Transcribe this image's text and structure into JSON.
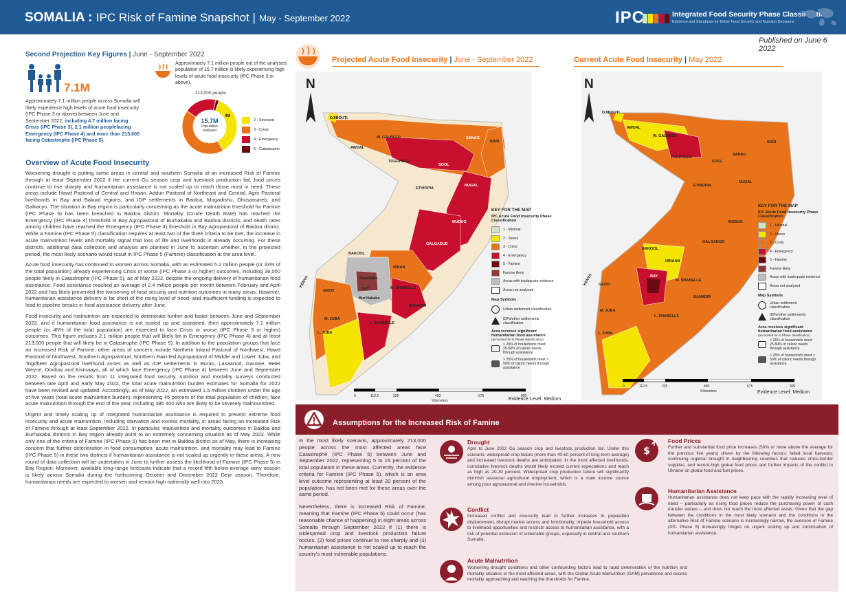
{
  "header": {
    "country": "SOMALIA :",
    "title": "IPC Risk of Famine Snapshot |",
    "period": "May - September 2022",
    "logo": "IPC",
    "org": "Integrated Food Security Phase Classification",
    "org_sub": "Evidence and Standards for Better Food Security and Nutrition Decisions"
  },
  "published": "Published on June 6 2022",
  "key_figures": {
    "title": "Second Projection Key Figures",
    "period": "June - September 2022",
    "headline": "7.1M",
    "text_lead": "Approximately 7.1 million people across Somalia will likely experience high levels of acute food insecurity (IPC Phase 3 or above) between June and September 2022,",
    "text_bold": "including 4.7 million facing Crisis (IPC Phase 3), 2.1 million peoplefacing Emergency (IPC Phase 4) and more than 213,000 facing Catastrophe (IPC Phase 5).",
    "text2": "Approximately 7.1 million people out of the analysed population of 15.7 million is likely experiencing high levels of acute food insecurity (IPC Phase 3 or above).",
    "donut_top": "213,000 people",
    "donut_center": "15.7M",
    "donut_center_sub": "Population analysed",
    "slices": [
      {
        "label": "4M",
        "value": 4.0,
        "color": "#f5e400"
      },
      {
        "label": "4.7M",
        "value": 4.7,
        "color": "#e8731a"
      },
      {
        "label": "2.1M",
        "value": 2.1,
        "color": "#c8102e"
      },
      {
        "label": "",
        "value": 0.213,
        "color": "#6b0a12"
      }
    ],
    "legend": [
      {
        "label": "2 - Stressed",
        "color": "#f5e400"
      },
      {
        "label": "3 - Crisis",
        "color": "#e8731a"
      },
      {
        "label": "4 - Emergency",
        "color": "#c8102e"
      },
      {
        "label": "5 - Catastrophe",
        "color": "#6b0a12"
      }
    ]
  },
  "overview": {
    "title": "Overview of Acute Food Insecurity",
    "p1": "Worsening drought is putting some areas in central and southern Somalia at an increased Risk of Famine through at least September 2022 if the current Gu season crop and livestock production fail, food prices continue to rise sharply and humanitarian assistance is not scaled up to reach those most in need. These areas include Hawd Pastoral of Central and Hiraan, Addun Pastoral of Northeast and Central, Agro Pastoral livelihoods in Bay and Bakool regions, and IDP settlements in Baidoa, Mogadishu, Dhusamareb, and Galkacyo. The situation in Bay region is particularly concerning as the acute malnutrition threshold for Famine (IPC Phase 5) has been breached in Baidoa district. Mortality (Crude Death Rate) has reached the Emergency (IPC Phase 4) threshold in Bay Agropastoral of Burhakaba and Baidoa districts, and death rates among children have reached the Emergency (IPC Phase 4) threshold in Bay Agropastoral of Baidoa district. While a Famine (IPC Phase 5) classification requires at least two of the three criteria to be met, the increase in acute malnutrition levels and mortality signal that loss of life and livelihoods is already occurring. For these districts, additional data collection and analysis are planned in June to ascertain whether, in the projected period, the most likely scenario would result in IPC Phase 5 (Famine) classification at the area level.",
    "p2": "Acute food insecurity has continued to worsen across Somalia, with an estimated 5.2 million people (or 33% of the total population) already experiencing Crisis or worse (IPC Phase 3 or higher) outcomes, including 38,000 people likely in Catastrophe (IPC Phase 5), as of May 2022, despite the ongoing delivery of humanitarian food assistance. Food assistance reached an average of 2.4 million people per month between February and April 2022 and has likely prevented the worsening of food security and nutrition outcomes in many areas. However, humanitarian assistance delivery is far short of the rising level of need, and insufficient funding is expected to lead to pipeline breaks in food assistance delivery after June.",
    "p3": "Food insecurity and malnutrition are expected to deteriorate further and faster between June and September 2022, and if humanitarian food assistance is not scaled up and sustained, then approximately 7.1 million people (or 45% of the total population) are expected to face Crisis or worse (IPC Phase 3 or higher) outcomes. This figure includes 2.1 million people that will likely be in Emergency (IPC Phase 4) and at least 213,000 people that will likely be in Catastrophe (IPC Phase 5). In addition to the population groups that face an increased Risk of Famine, other areas of concern include Northern Inland Pastoral of Northwest, Hawd Pastoral of Northwest, Southern Agropastoral, Southern Rain-fed Agropastoral of Middle and Lower Juba, and Togdheer Agropastoral livelihood zones as well as IDP settlements in Burao, Lasaanod, Garowe, Belet Weyne, Doolow and Kismaayo, all of which face Emergency (IPC Phase 4) between June and September 2022. Based on the results from 11 integrated food security, nutrition and mortality surveys conducted between late April and early May 2022, the total acute malnutrition burden estimates for Somalia for 2022 have been revised and updated.  Accordingly, as of May 2022, an estimated 1.5 million children under the age of five years (total acute malnutrition burden), representing 45 percent of the total population of children, face acute malnutrition through the end of the year, including 386 400 who are likely to be severely malnourished.",
    "p4": "Urgent and timely scaling up of integrated humanitarian assistance is required to prevent extreme food insecurity and acute malnutrition, including starvation and excess mortality, in areas facing an increased Risk of Famine through at least September 2022. In particular, malnutrition and mortality outcomes in Baidoa and Burhakaba districts in Bay region already point to an extremely concerning situation as of May 2022. While only one of the criteria of Famine (IPC Phase 5) has been met in Baidoa district as of May, there is increasing concern that further deterioration in food consumption, acute malnutrition, and mortality may lead to Famine (IPC Phase 5) in these two districts if humanitarian assistance is not scaled up urgently in these areas. A new round of data collection will be undertaken in June to further assess the likelihood of Famine (IPC Phase 5) in Bay Region. Moreover, available long-range forecasts indicate that a record fifth below-average rainy season is likely across Somalia during the forthcoming October and December 2022 Deyr season.  Therefore, humanitarian needs are expected to worsen and remain high nationally well into 2023."
  },
  "maps": {
    "projected_title": "Projected Acute Food Insecurity",
    "projected_period": "June - September 2022",
    "current_title": "Current Acute Food Insecurity",
    "current_period": "May 2022",
    "north": "N",
    "labels1": [
      "DJIBOUTI",
      "AWDAL",
      "W. GALBEED",
      "SANAG",
      "BARI",
      "TOGDHEER",
      "SOOL",
      "NUGAL",
      "ETHIOPIA",
      "MUDUG",
      "GALGADUD",
      "BAKOOL",
      "HIRAN",
      "Baydhabo",
      "Bur Hakaba",
      "GEDO",
      "M. SHABELLE",
      "BANADIR",
      "L. SHABELLE",
      "M. JUBA",
      "L. JUBA",
      "KENYA",
      "BAY"
    ],
    "labels2": [
      "DJIBOUTI",
      "AWDAL",
      "W. GALBEED",
      "SANAG",
      "BARI",
      "TOGDHEER",
      "SOOL",
      "NUGAL",
      "ETHIOPIA",
      "MUDUG",
      "GALGADUD",
      "BAKOOL",
      "HIRAAN",
      "GEDO",
      "M. SHABELLE",
      "BANADIR",
      "L. SHABELLE",
      "M. JUBA",
      "L. JUBA",
      "KENYA",
      "BAY"
    ],
    "key": {
      "title": "KEY FOR THE MAP",
      "subtitle": "IPC Acute Food Insecurity Phase Classification",
      "phases": [
        {
          "label": "1 - Minimal",
          "color": "#cde5c0"
        },
        {
          "label": "2 - Stress",
          "color": "#f5e400"
        },
        {
          "label": "3 - Crisis",
          "color": "#e8731a"
        },
        {
          "label": "4 - Emergency",
          "color": "#c8102e"
        },
        {
          "label": "5 - Famine",
          "color": "#6b0a12"
        },
        {
          "label": "Famine likely",
          "color": "#8b3a3a"
        },
        {
          "label": "Areas with inadequate evidence",
          "color": "#bdbdbd"
        },
        {
          "label": "Areas not analysed",
          "color": "#ffffff"
        }
      ],
      "symbols_title": "Map Symbols",
      "sym1": "Urban settlement classification",
      "sym2": "IDPs/other settlements classification",
      "assist_title": "Area receives significant humanitarian food assistance",
      "assist_note": "(accounted for in Phase classification)",
      "assist1": "> 25% of households meet 25-50% of caloric needs through assistance",
      "assist2": "> 25% of households meet > 50% of caloric needs through assistance"
    },
    "scale_ticks": [
      "0",
      "112.5",
      "225",
      "450",
      "675",
      "900"
    ],
    "scale_unit": "Kilometers",
    "evidence": "Evidence Level: Medium"
  },
  "assumptions": {
    "title": "Assumptions for the Increased  Risk of Famine",
    "p1": "In the most likely scenario, approximately 213,000 people across the most affected areas face Catastrophe (IPC Phase 5) between June and September 2022, representing 5 to 15 percent of the total population in these areas. Currently, the evidence criteria for Famine (IPC Phase 5), which is an area level outcome representing at least 20 percent of the population, has not been met for these areas over the same period.",
    "p2": "Nevertheless, there is increased Risk of Famine, meaning that Famine (IPC Phase 5) could occur (has reasonable chance of happening) in eight areas across Somalia through September 2022 if (1) there is widespread crop and livestock production failure occurs, (2) food prices continue to rise sharply and (3) humanitarian assistance is not scaled up to reach the country's most vulnerable populations.",
    "drought_h": "Drought",
    "drought_t": "April to June 2022 Gu season crop and livestock production fail. Under this scenario, widespread crop failure (more than 40-60 percent of long-term average) and increased livestock deaths are anticipated. In the most affected livelihoods, cumulative livestock deaths would likely exceed current expectations and reach as high as 20-30 percent. Widespread crop production failure will significantly diminish seasonal agricultural employment, which is a main income source among poor agropastoral and riverine households.",
    "conflict_h": "Conflict",
    "conflict_t": "Increased conflict and insecurity lead to further increases in population displacement, disrupt market access and functionality, impede household access to livelihood opportunities and restricts access to humanitarian assistance, with a risk of potential exclusion of vulnerable groups, especially in central and southern Somalia.",
    "prices_h": "Food Prices",
    "prices_t": "Further and substantial food price increases (50% or more above the average for the previous five years) driven by the following factors: failed local harvests; continuing regional drought in neighbouring countries that reduces cross-border supplies; and record-high global food prices and further impacts of the conflict in Ukraine on global food and fuel prices.",
    "assist_h": "Humanitarian Assistance",
    "assist_t": "Humanitarian assistance does not keep pace with the rapidly increasing level of need – particularly as rising food prices reduce the purchasing power of cash transfer values – and does not reach the most affected areas. Given that the gap between the conditions in the most likely scenario and the conditions in the alternative Risk of Famine scenario is increasingly narrow, the aversion of Famine (IPC Phase 5) increasingly hinges on urgent scaling up and continuation of humanitarian assistance.",
    "malnut_h": "Acute Malnutrition",
    "malnut_t": "Worsening drought conditions and other confounding factors lead to rapid deterioration of the nutrition and mortality situation in the most affected areas, with the Global Acute Malnutrition (GAM) prevalence and excess mortality approaching and reaching the thresholds for Famine."
  }
}
